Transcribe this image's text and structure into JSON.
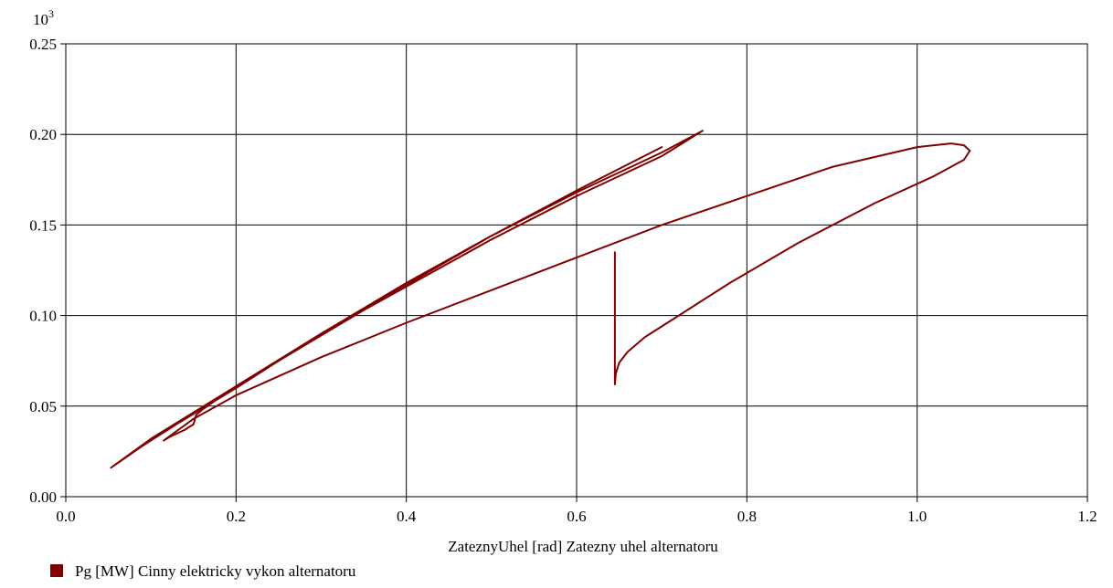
{
  "chart_data": {
    "type": "line",
    "xlabel": "ZateznyUhel [rad] Zatezny uhel alternatoru",
    "ylabel": "",
    "y_multiplier": "10",
    "y_multiplier_exp": "3",
    "xlim": [
      0.0,
      1.2
    ],
    "ylim": [
      0.0,
      0.25
    ],
    "x_ticks": [
      "0.0",
      "0.2",
      "0.4",
      "0.6",
      "0.8",
      "1.0",
      "1.2"
    ],
    "y_ticks": [
      "0.00",
      "0.05",
      "0.10",
      "0.15",
      "0.20",
      "0.25"
    ],
    "x_tick_values": [
      0.0,
      0.2,
      0.4,
      0.6,
      0.8,
      1.0,
      1.2
    ],
    "y_tick_values": [
      0.0,
      0.05,
      0.1,
      0.15,
      0.2,
      0.25
    ],
    "grid": true,
    "legend_position": "bottom-left",
    "series": [
      {
        "name": "Pg [MW] Cinny elektricky vykon alternatoru",
        "color": "#800000",
        "x": [
          0.645,
          0.645,
          0.645,
          0.646,
          0.65,
          0.66,
          0.68,
          0.72,
          0.78,
          0.86,
          0.95,
          1.02,
          1.055,
          1.062,
          1.055,
          1.04,
          1.0,
          0.9,
          0.8,
          0.7,
          0.6,
          0.5,
          0.4,
          0.3,
          0.2,
          0.15,
          0.115,
          0.122,
          0.14,
          0.15,
          0.153,
          0.16,
          0.2,
          0.3,
          0.4,
          0.5,
          0.6,
          0.7,
          0.748,
          0.7,
          0.6,
          0.5,
          0.4,
          0.3,
          0.2,
          0.13,
          0.09,
          0.053,
          0.1,
          0.2,
          0.3,
          0.4,
          0.5,
          0.6,
          0.7
        ],
        "y": [
          0.135,
          0.1,
          0.062,
          0.068,
          0.074,
          0.08,
          0.088,
          0.1,
          0.118,
          0.14,
          0.162,
          0.177,
          0.186,
          0.191,
          0.194,
          0.195,
          0.193,
          0.182,
          0.166,
          0.15,
          0.132,
          0.114,
          0.096,
          0.077,
          0.056,
          0.043,
          0.031,
          0.033,
          0.037,
          0.04,
          0.045,
          0.048,
          0.061,
          0.09,
          0.116,
          0.142,
          0.166,
          0.188,
          0.202,
          0.19,
          0.168,
          0.144,
          0.118,
          0.09,
          0.06,
          0.04,
          0.028,
          0.016,
          0.032,
          0.061,
          0.089,
          0.117,
          0.144,
          0.169,
          0.193
        ]
      }
    ]
  }
}
